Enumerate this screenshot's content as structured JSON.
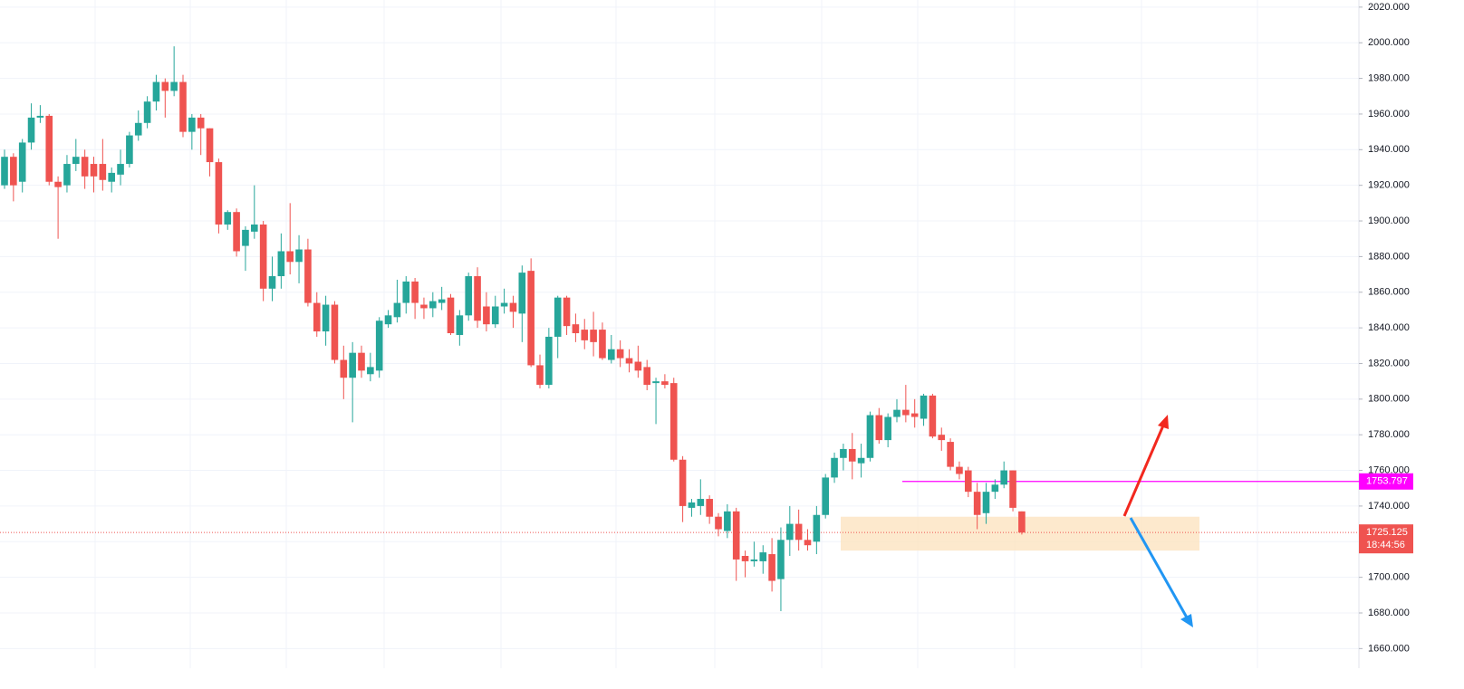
{
  "chart_data": {
    "type": "candlestick",
    "ylim": [
      1649,
      2024
    ],
    "yticks": [
      {
        "value": 2020,
        "label": "2020.000"
      },
      {
        "value": 2000,
        "label": "2000.000"
      },
      {
        "value": 1980,
        "label": "1980.000"
      },
      {
        "value": 1960,
        "label": "1960.000"
      },
      {
        "value": 1940,
        "label": "1940.000"
      },
      {
        "value": 1920,
        "label": "1920.000"
      },
      {
        "value": 1900,
        "label": "1900.000"
      },
      {
        "value": 1880,
        "label": "1880.000"
      },
      {
        "value": 1860,
        "label": "1860.000"
      },
      {
        "value": 1840,
        "label": "1840.000"
      },
      {
        "value": 1820,
        "label": "1820.000"
      },
      {
        "value": 1800,
        "label": "1800.000"
      },
      {
        "value": 1780,
        "label": "1780.000"
      },
      {
        "value": 1760,
        "label": "1760.000"
      },
      {
        "value": 1740,
        "label": "1740.000"
      },
      {
        "value": 1720,
        "label": "1720.000"
      },
      {
        "value": 1700,
        "label": "1700.000"
      },
      {
        "value": 1680,
        "label": "1680.000"
      },
      {
        "value": 1660,
        "label": "1660.000"
      }
    ],
    "grid": true,
    "up_color": "#26a69a",
    "down_color": "#ef5350",
    "open": [
      1920,
      1936,
      1922,
      1944,
      1958,
      1959,
      1922,
      1920,
      1932,
      1936,
      1932,
      1932,
      1922,
      1926,
      1932,
      1948,
      1955,
      1967,
      1978,
      1973,
      1978,
      1950,
      1958,
      1952,
      1933,
      1898,
      1905,
      1886,
      1894,
      1898,
      1862,
      1869,
      1883,
      1877,
      1884,
      1854,
      1838,
      1853,
      1822,
      1812,
      1826,
      1814,
      1816,
      1842,
      1846,
      1854,
      1866,
      1853,
      1851,
      1854,
      1857,
      1836,
      1847,
      1869,
      1852,
      1842,
      1852,
      1854,
      1848,
      1872,
      1819,
      1808,
      1835,
      1857,
      1842,
      1839,
      1839,
      1839,
      1822,
      1828,
      1823,
      1821,
      1818,
      1809,
      1810,
      1809,
      1766,
      1739,
      1740,
      1744,
      1734,
      1726,
      1737,
      1712,
      1709,
      1709,
      1713,
      1699,
      1721,
      1730,
      1721,
      1720,
      1735,
      1756,
      1767,
      1772,
      1764,
      1767,
      1791,
      1777,
      1790,
      1794,
      1792,
      1789,
      1802,
      1780,
      1776,
      1762,
      1760,
      1748,
      1736,
      1748,
      1752,
      1760,
      1737
    ],
    "high": [
      1940,
      1938,
      1946,
      1966,
      1965,
      1960,
      1925,
      1937,
      1946,
      1940,
      1936,
      1946,
      1930,
      1940,
      1950,
      1962,
      1970,
      1982,
      1980,
      1998,
      1982,
      1960,
      1960,
      1952,
      1935,
      1906,
      1907,
      1897,
      1920,
      1900,
      1880,
      1893,
      1910,
      1892,
      1890,
      1860,
      1858,
      1855,
      1830,
      1832,
      1830,
      1826,
      1846,
      1850,
      1867,
      1869,
      1868,
      1857,
      1860,
      1863,
      1859,
      1850,
      1871,
      1874,
      1860,
      1858,
      1862,
      1858,
      1875,
      1879,
      1825,
      1840,
      1858,
      1858,
      1848,
      1845,
      1849,
      1843,
      1836,
      1833,
      1828,
      1830,
      1822,
      1812,
      1814,
      1812,
      1768,
      1744,
      1755,
      1746,
      1736,
      1741,
      1739,
      1715,
      1720,
      1718,
      1722,
      1728,
      1740,
      1738,
      1727,
      1740,
      1758,
      1770,
      1775,
      1781,
      1775,
      1793,
      1795,
      1792,
      1800,
      1808,
      1800,
      1803,
      1803,
      1784,
      1778,
      1765,
      1762,
      1753,
      1753,
      1755,
      1765,
      1760,
      1737
    ],
    "low": [
      1918,
      1911,
      1916,
      1940,
      1955,
      1920,
      1890,
      1916,
      1928,
      1918,
      1916,
      1917,
      1916,
      1920,
      1930,
      1945,
      1952,
      1962,
      1958,
      1970,
      1947,
      1940,
      1937,
      1925,
      1893,
      1895,
      1880,
      1872,
      1890,
      1855,
      1855,
      1862,
      1870,
      1865,
      1852,
      1835,
      1830,
      1820,
      1800,
      1787,
      1812,
      1810,
      1812,
      1840,
      1843,
      1848,
      1845,
      1845,
      1846,
      1850,
      1836,
      1830,
      1844,
      1840,
      1838,
      1840,
      1848,
      1840,
      1832,
      1818,
      1806,
      1806,
      1823,
      1836,
      1832,
      1828,
      1824,
      1822,
      1820,
      1818,
      1815,
      1812,
      1805,
      1786,
      1806,
      1765,
      1731,
      1734,
      1735,
      1730,
      1723,
      1722,
      1698,
      1700,
      1706,
      1702,
      1692,
      1681,
      1712,
      1715,
      1715,
      1713,
      1733,
      1753,
      1760,
      1755,
      1756,
      1765,
      1775,
      1773,
      1787,
      1787,
      1784,
      1785,
      1778,
      1771,
      1760,
      1755,
      1745,
      1727,
      1730,
      1744,
      1750,
      1737,
      1724
    ],
    "close": [
      1936,
      1920,
      1944,
      1958,
      1959,
      1922,
      1919,
      1932,
      1936,
      1925,
      1925,
      1923,
      1927,
      1932,
      1948,
      1955,
      1967,
      1978,
      1973,
      1978,
      1950,
      1958,
      1952,
      1933,
      1898,
      1905,
      1883,
      1895,
      1898,
      1862,
      1869,
      1883,
      1877,
      1884,
      1854,
      1838,
      1853,
      1822,
      1812,
      1826,
      1816,
      1818,
      1844,
      1847,
      1854,
      1866,
      1854,
      1851,
      1855,
      1856,
      1837,
      1847,
      1869,
      1844,
      1842,
      1852,
      1854,
      1849,
      1871,
      1819,
      1808,
      1835,
      1857,
      1841,
      1837,
      1833,
      1832,
      1823,
      1828,
      1823,
      1820,
      1816,
      1808,
      1810,
      1808,
      1766,
      1740,
      1742,
      1744,
      1734,
      1727,
      1737,
      1710,
      1709,
      1710,
      1714,
      1698,
      1721,
      1730,
      1721,
      1718,
      1735,
      1756,
      1767,
      1772,
      1765,
      1767,
      1791,
      1777,
      1790,
      1794,
      1791,
      1790,
      1802,
      1779,
      1777,
      1762,
      1758,
      1748,
      1735,
      1748,
      1752,
      1760,
      1739,
      1725.125
    ],
    "price_line": {
      "value": 1753.797,
      "color": "#ff00ff"
    },
    "current_price": {
      "value": 1725.125,
      "countdown": "18:44:56"
    },
    "zone": [
      1715,
      1734
    ]
  }
}
